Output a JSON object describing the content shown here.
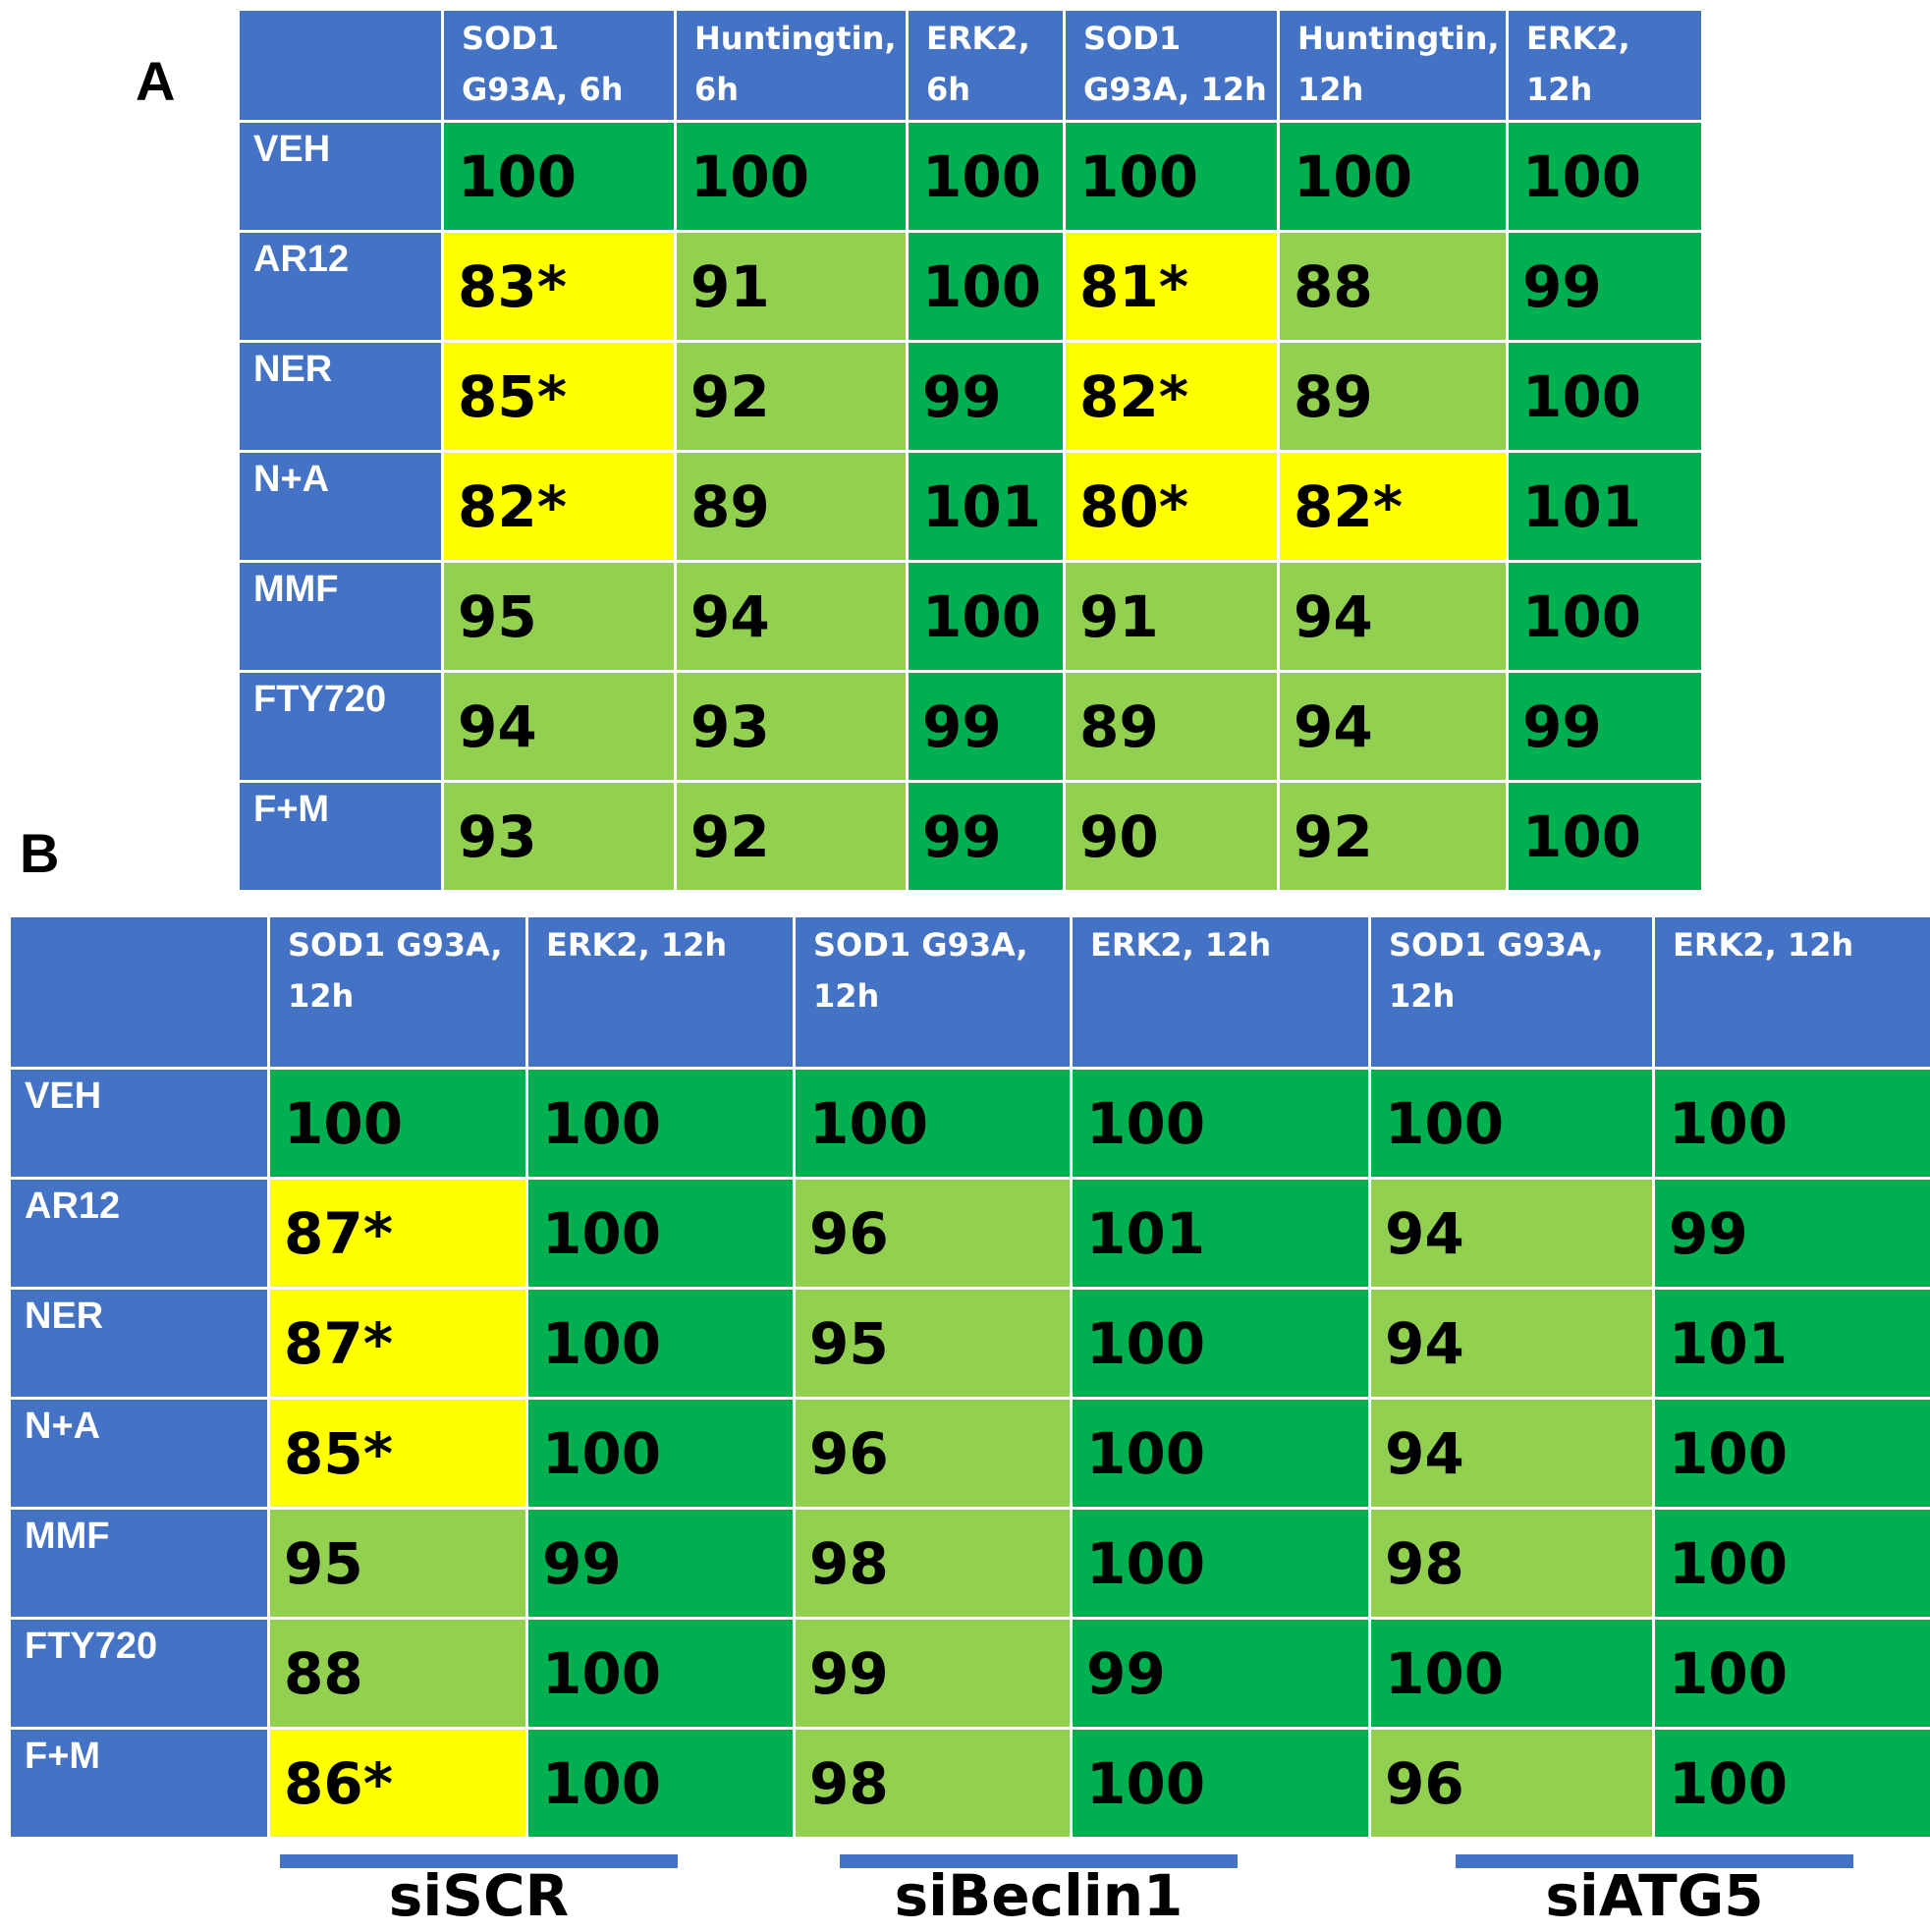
{
  "panel_a_label": "A",
  "panel_b_label": "B",
  "colors": {
    "header": "#4472c4",
    "dark_green": "#00b050",
    "light_green": "#92d050",
    "yellow": "#ffff00"
  },
  "chart_data": [
    {
      "type": "table",
      "panel": "A",
      "columns": [
        "SOD1 G93A, 6h",
        "Huntingtin, 6h",
        "ERK2, 6h",
        "SOD1 G93A, 12h",
        "Huntingtin, 12h",
        "ERK2, 12h"
      ],
      "rows": [
        {
          "label": "VEH",
          "values": [
            "100",
            "100",
            "100",
            "100",
            "100",
            "100"
          ],
          "colors": [
            "dark",
            "dark",
            "dark",
            "dark",
            "dark",
            "dark"
          ]
        },
        {
          "label": "AR12",
          "values": [
            "83*",
            "91",
            "100",
            "81*",
            "88",
            "99"
          ],
          "colors": [
            "yellow",
            "light",
            "dark",
            "yellow",
            "light",
            "dark"
          ]
        },
        {
          "label": "NER",
          "values": [
            "85*",
            "92",
            "99",
            "82*",
            "89",
            "100"
          ],
          "colors": [
            "yellow",
            "light",
            "dark",
            "yellow",
            "light",
            "dark"
          ]
        },
        {
          "label": "N+A",
          "values": [
            "82*",
            "89",
            "101",
            "80*",
            "82*",
            "101"
          ],
          "colors": [
            "yellow",
            "light",
            "dark",
            "yellow",
            "yellow",
            "dark"
          ]
        },
        {
          "label": "MMF",
          "values": [
            "95",
            "94",
            "100",
            "91",
            "94",
            "100"
          ],
          "colors": [
            "light",
            "light",
            "dark",
            "light",
            "light",
            "dark"
          ]
        },
        {
          "label": "FTY720",
          "values": [
            "94",
            "93",
            "99",
            "89",
            "94",
            "99"
          ],
          "colors": [
            "light",
            "light",
            "dark",
            "light",
            "light",
            "dark"
          ]
        },
        {
          "label": "F+M",
          "values": [
            "93",
            "92",
            "99",
            "90",
            "92",
            "100"
          ],
          "colors": [
            "light",
            "light",
            "dark",
            "light",
            "light",
            "dark"
          ]
        }
      ]
    },
    {
      "type": "table",
      "panel": "B",
      "columns": [
        "SOD1 G93A, 12h",
        "ERK2, 12h",
        "SOD1 G93A, 12h",
        "ERK2, 12h",
        "SOD1 G93A, 12h",
        "ERK2, 12h"
      ],
      "groups": [
        "siSCR",
        "siBeclin1",
        "siATG5"
      ],
      "rows": [
        {
          "label": "VEH",
          "values": [
            "100",
            "100",
            "100",
            "100",
            "100",
            "100"
          ],
          "colors": [
            "dark",
            "dark",
            "dark",
            "dark",
            "dark",
            "dark"
          ]
        },
        {
          "label": "AR12",
          "values": [
            "87*",
            "100",
            "96",
            "101",
            "94",
            "99"
          ],
          "colors": [
            "yellow",
            "dark",
            "light",
            "dark",
            "light",
            "dark"
          ]
        },
        {
          "label": "NER",
          "values": [
            "87*",
            "100",
            "95",
            "100",
            "94",
            "101"
          ],
          "colors": [
            "yellow",
            "dark",
            "light",
            "dark",
            "light",
            "dark"
          ]
        },
        {
          "label": "N+A",
          "values": [
            "85*",
            "100",
            "96",
            "100",
            "94",
            "100"
          ],
          "colors": [
            "yellow",
            "dark",
            "light",
            "dark",
            "light",
            "dark"
          ]
        },
        {
          "label": "MMF",
          "values": [
            "95",
            "99",
            "98",
            "100",
            "98",
            "100"
          ],
          "colors": [
            "light",
            "dark",
            "light",
            "dark",
            "light",
            "dark"
          ]
        },
        {
          "label": "FTY720",
          "values": [
            "88",
            "100",
            "99",
            "99",
            "100",
            "100"
          ],
          "colors": [
            "light",
            "dark",
            "light",
            "dark",
            "dark",
            "dark"
          ]
        },
        {
          "label": "F+M",
          "values": [
            "86*",
            "100",
            "98",
            "100",
            "96",
            "100"
          ],
          "colors": [
            "yellow",
            "dark",
            "light",
            "dark",
            "light",
            "dark"
          ]
        }
      ]
    }
  ]
}
